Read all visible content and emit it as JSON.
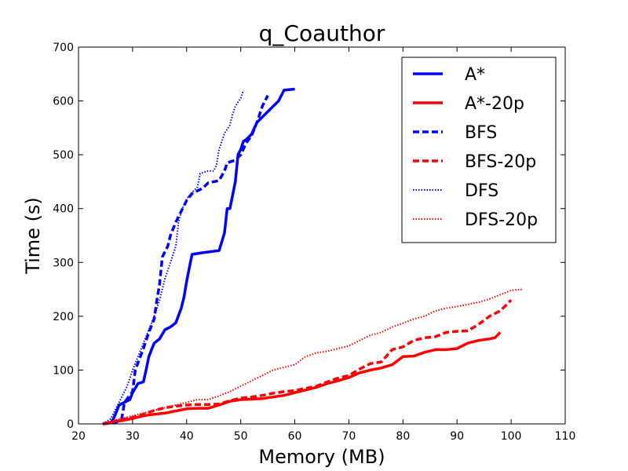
{
  "chart_data": {
    "type": "line",
    "title": "q_Coauthor",
    "xlabel": "Memory (MB)",
    "ylabel": "Time (s)",
    "xlim": [
      20,
      110
    ],
    "ylim": [
      0,
      700
    ],
    "xticks": [
      20,
      30,
      40,
      50,
      60,
      70,
      80,
      90,
      100,
      110
    ],
    "yticks": [
      0,
      100,
      200,
      300,
      400,
      500,
      600,
      700
    ],
    "grid": false,
    "legend_position": "top-right",
    "series": [
      {
        "name": "A*",
        "color": "#0000ff",
        "style": "solid",
        "points": [
          [
            24.5,
            0
          ],
          [
            26,
            3
          ],
          [
            26.5,
            10
          ],
          [
            27,
            22
          ],
          [
            27.5,
            35
          ],
          [
            28.5,
            40
          ],
          [
            29.5,
            45
          ],
          [
            30,
            58
          ],
          [
            31,
            75
          ],
          [
            32,
            78
          ],
          [
            32.5,
            100
          ],
          [
            33,
            125
          ],
          [
            34,
            150
          ],
          [
            35,
            158
          ],
          [
            36,
            175
          ],
          [
            37,
            180
          ],
          [
            38,
            188
          ],
          [
            39,
            215
          ],
          [
            39.5,
            235
          ],
          [
            40,
            265
          ],
          [
            40.5,
            290
          ],
          [
            41,
            315
          ],
          [
            43,
            318
          ],
          [
            46,
            322
          ],
          [
            47,
            355
          ],
          [
            47.5,
            400
          ],
          [
            48,
            400
          ],
          [
            49,
            450
          ],
          [
            49.5,
            500
          ],
          [
            50,
            510
          ],
          [
            50.5,
            525
          ],
          [
            51,
            528
          ],
          [
            52,
            538
          ],
          [
            53,
            560
          ],
          [
            54,
            570
          ],
          [
            55,
            580
          ],
          [
            56,
            590
          ],
          [
            57,
            600
          ],
          [
            58,
            620
          ],
          [
            60,
            622
          ]
        ]
      },
      {
        "name": "A*-20p",
        "color": "#ff0000",
        "style": "solid",
        "points": [
          [
            24.5,
            0
          ],
          [
            26,
            3
          ],
          [
            28,
            6
          ],
          [
            30,
            10
          ],
          [
            32,
            15
          ],
          [
            34,
            18
          ],
          [
            36,
            20
          ],
          [
            38,
            24
          ],
          [
            40,
            28
          ],
          [
            42,
            29
          ],
          [
            44,
            29
          ],
          [
            46,
            35
          ],
          [
            48,
            42
          ],
          [
            50,
            45
          ],
          [
            52,
            46
          ],
          [
            54,
            47
          ],
          [
            56,
            50
          ],
          [
            58,
            53
          ],
          [
            60,
            58
          ],
          [
            62,
            63
          ],
          [
            64,
            68
          ],
          [
            66,
            75
          ],
          [
            68,
            80
          ],
          [
            70,
            86
          ],
          [
            72,
            95
          ],
          [
            74,
            100
          ],
          [
            76,
            104
          ],
          [
            78,
            110
          ],
          [
            80,
            125
          ],
          [
            82,
            126
          ],
          [
            84,
            133
          ],
          [
            86,
            138
          ],
          [
            88,
            138
          ],
          [
            90,
            140
          ],
          [
            92,
            150
          ],
          [
            94,
            155
          ],
          [
            96,
            158
          ],
          [
            97,
            160
          ],
          [
            98,
            170
          ]
        ]
      },
      {
        "name": "BFS",
        "color": "#0000ff",
        "style": "dashed",
        "points": [
          [
            24.5,
            0
          ],
          [
            27,
            3
          ],
          [
            28,
            10
          ],
          [
            28.5,
            40
          ],
          [
            30,
            60
          ],
          [
            30.5,
            100
          ],
          [
            32,
            140
          ],
          [
            33,
            170
          ],
          [
            34,
            195
          ],
          [
            34.5,
            230
          ],
          [
            35,
            260
          ],
          [
            35.5,
            310
          ],
          [
            36.5,
            330
          ],
          [
            37,
            350
          ],
          [
            38,
            375
          ],
          [
            39,
            395
          ],
          [
            40,
            415
          ],
          [
            41,
            428
          ],
          [
            43,
            438
          ],
          [
            44,
            448
          ],
          [
            46,
            452
          ],
          [
            47,
            470
          ],
          [
            47.5,
            485
          ],
          [
            49,
            490
          ],
          [
            50,
            500
          ],
          [
            51,
            522
          ],
          [
            52,
            535
          ],
          [
            53,
            560
          ],
          [
            54,
            590
          ],
          [
            55,
            610
          ]
        ]
      },
      {
        "name": "BFS-20p",
        "color": "#ff0000",
        "style": "dashed",
        "points": [
          [
            24.5,
            0
          ],
          [
            26,
            3
          ],
          [
            28,
            8
          ],
          [
            30,
            12
          ],
          [
            32,
            18
          ],
          [
            34,
            25
          ],
          [
            36,
            30
          ],
          [
            38,
            33
          ],
          [
            40,
            35
          ],
          [
            42,
            36
          ],
          [
            44,
            36
          ],
          [
            46,
            37
          ],
          [
            48,
            43
          ],
          [
            50,
            48
          ],
          [
            52,
            50
          ],
          [
            54,
            53
          ],
          [
            56,
            57
          ],
          [
            58,
            60
          ],
          [
            60,
            62
          ],
          [
            62,
            66
          ],
          [
            64,
            70
          ],
          [
            66,
            78
          ],
          [
            68,
            85
          ],
          [
            70,
            90
          ],
          [
            72,
            102
          ],
          [
            74,
            112
          ],
          [
            76,
            115
          ],
          [
            78,
            138
          ],
          [
            80,
            143
          ],
          [
            82,
            155
          ],
          [
            84,
            160
          ],
          [
            86,
            162
          ],
          [
            88,
            170
          ],
          [
            90,
            172
          ],
          [
            92,
            173
          ],
          [
            94,
            185
          ],
          [
            96,
            200
          ],
          [
            98,
            210
          ],
          [
            100,
            230
          ]
        ]
      },
      {
        "name": "DFS",
        "color": "#0000ff",
        "style": "dotted",
        "points": [
          [
            24.5,
            0
          ],
          [
            26,
            10
          ],
          [
            27,
            30
          ],
          [
            28,
            50
          ],
          [
            29,
            70
          ],
          [
            30,
            100
          ],
          [
            31,
            125
          ],
          [
            32,
            150
          ],
          [
            33,
            175
          ],
          [
            34,
            200
          ],
          [
            35,
            230
          ],
          [
            36,
            270
          ],
          [
            37,
            300
          ],
          [
            38,
            330
          ],
          [
            38.5,
            375
          ],
          [
            39,
            395
          ],
          [
            40,
            418
          ],
          [
            41,
            430
          ],
          [
            42,
            440
          ],
          [
            42.5,
            465
          ],
          [
            44,
            470
          ],
          [
            45,
            470
          ],
          [
            45.5,
            480
          ],
          [
            46,
            510
          ],
          [
            47,
            540
          ],
          [
            48,
            555
          ],
          [
            48.5,
            575
          ],
          [
            49,
            590
          ],
          [
            50,
            605
          ],
          [
            50.5,
            620
          ]
        ]
      },
      {
        "name": "DFS-20p",
        "color": "#ff0000",
        "style": "dotted",
        "points": [
          [
            24.5,
            0
          ],
          [
            26,
            5
          ],
          [
            28,
            10
          ],
          [
            30,
            15
          ],
          [
            32,
            20
          ],
          [
            34,
            25
          ],
          [
            36,
            30
          ],
          [
            38,
            35
          ],
          [
            40,
            40
          ],
          [
            42,
            45
          ],
          [
            44,
            45
          ],
          [
            46,
            52
          ],
          [
            48,
            60
          ],
          [
            50,
            70
          ],
          [
            52,
            80
          ],
          [
            54,
            90
          ],
          [
            56,
            100
          ],
          [
            58,
            105
          ],
          [
            60,
            110
          ],
          [
            62,
            125
          ],
          [
            64,
            132
          ],
          [
            66,
            135
          ],
          [
            68,
            140
          ],
          [
            70,
            145
          ],
          [
            72,
            155
          ],
          [
            74,
            165
          ],
          [
            76,
            170
          ],
          [
            78,
            180
          ],
          [
            80,
            187
          ],
          [
            82,
            195
          ],
          [
            84,
            200
          ],
          [
            86,
            210
          ],
          [
            88,
            215
          ],
          [
            90,
            218
          ],
          [
            92,
            222
          ],
          [
            94,
            226
          ],
          [
            96,
            232
          ],
          [
            98,
            240
          ],
          [
            100,
            248
          ],
          [
            102,
            250
          ]
        ]
      }
    ]
  }
}
